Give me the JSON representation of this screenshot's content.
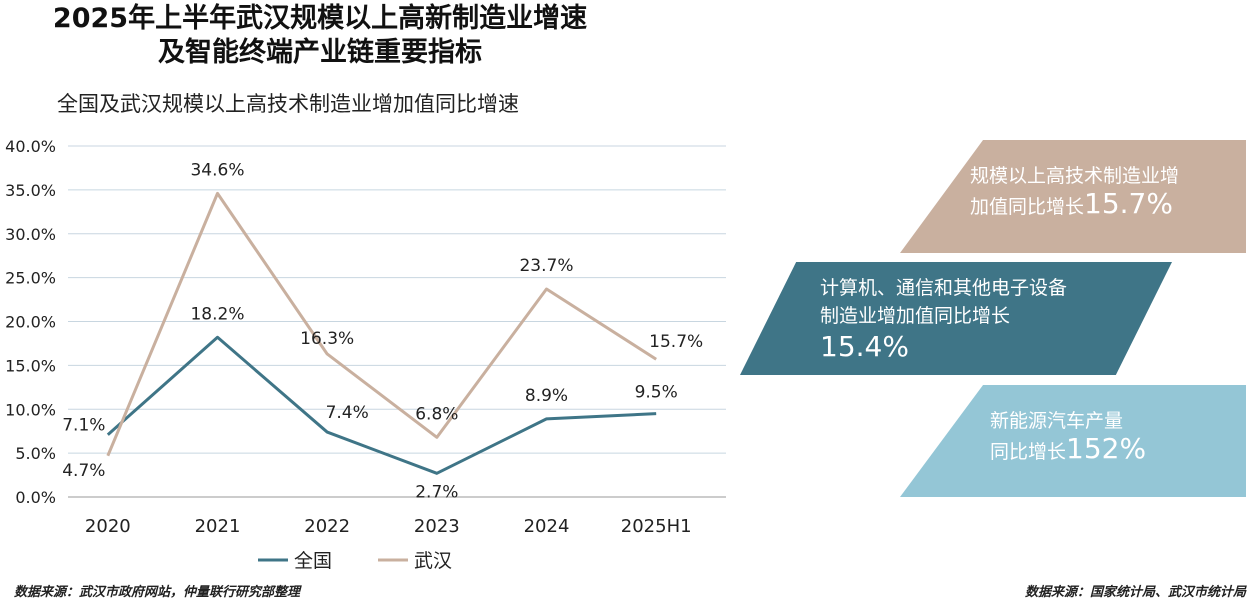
{
  "header": {
    "title_line1": "2025年上半年武汉规模以上高新制造业增速",
    "title_line2": "及智能终端产业链重要指标",
    "subtitle": "全国及武汉规模以上高技术制造业增加值同比增速"
  },
  "chart_data": {
    "type": "line",
    "title": "全国及武汉规模以上高技术制造业增加值同比增速",
    "categories": [
      "2020",
      "2021",
      "2022",
      "2023",
      "2024",
      "2025H1"
    ],
    "series": [
      {
        "name": "全国",
        "values": [
          7.1,
          18.2,
          7.4,
          2.7,
          8.9,
          9.5
        ],
        "color": "#3f7587"
      },
      {
        "name": "武汉",
        "values": [
          4.7,
          34.6,
          16.3,
          6.8,
          23.7,
          15.7
        ],
        "color": "#c9b09f"
      }
    ],
    "ylim": [
      0,
      40
    ],
    "yticks": [
      "0.0%",
      "5.0%",
      "10.0%",
      "15.0%",
      "20.0%",
      "25.0%",
      "30.0%",
      "35.0%",
      "40.0%"
    ],
    "grid": true,
    "legend": "bottom",
    "value_suffix": "%"
  },
  "panels": [
    {
      "line1": "规模以上高技术制造业增",
      "line2": "加值同比增长",
      "value": "15.7%",
      "color": "#c9b09f"
    },
    {
      "line1": "计算机、通信和其他电子设备",
      "line2": "制造业增加值同比增长",
      "value": "15.4%",
      "color": "#3f7587"
    },
    {
      "line1": "新能源汽车产量",
      "line2": "同比增长",
      "value": "152%",
      "color": "#94c6d6"
    }
  ],
  "footer": {
    "source_left": "数据来源：武汉市政府网站，仲量联行研究部整理",
    "source_right": "数据来源：国家统计局、武汉市统计局"
  }
}
